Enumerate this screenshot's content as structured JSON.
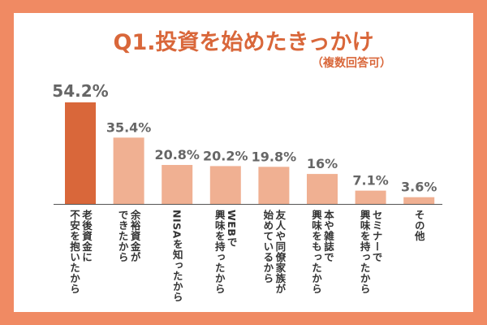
{
  "chart_data": {
    "type": "bar",
    "title": "Q1.投資を始めたきっかけ",
    "subtitle": "（複数回答可）",
    "categories": [
      "老後資金に\n不安を抱いたから",
      "余裕資金が\nできたから",
      "NISAを知ったから",
      "WEBで\n興味を持ったから",
      "友人や同僚家族が\n始めているから",
      "本や雑誌で\n興味をもったから",
      "セミナーで\n興味を持ったから",
      "その他"
    ],
    "values": [
      54.2,
      35.4,
      20.8,
      20.2,
      19.8,
      16,
      7.1,
      3.6
    ],
    "data_labels": [
      "54.2%",
      "35.4%",
      "20.8%",
      "20.2%",
      "19.8%",
      "16%",
      "7.1%",
      "3.6%"
    ],
    "unit": "%",
    "ylim": [
      0,
      60
    ],
    "grid": false,
    "colors": {
      "highlight": "#d9673a",
      "bar": "#f0b092",
      "frame": "#f08a63",
      "label": "#666666"
    }
  }
}
